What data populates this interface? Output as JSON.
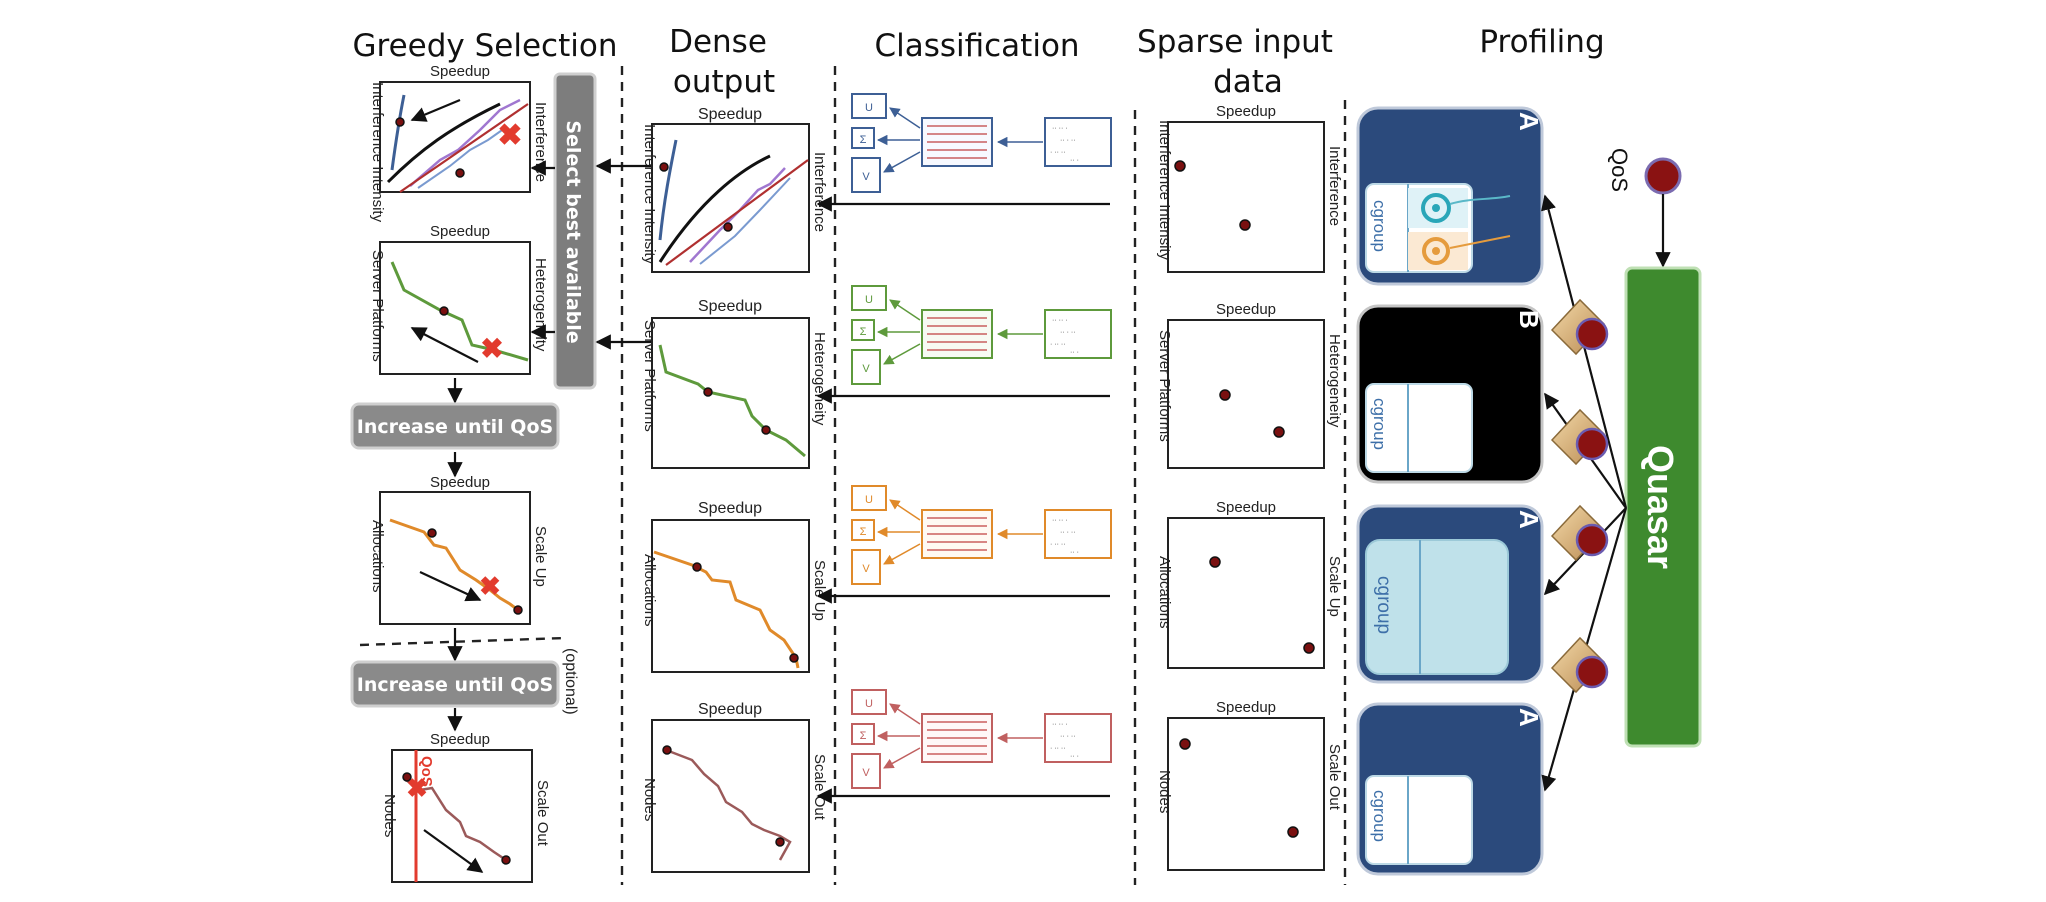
{
  "headers": {
    "greedy": "Greedy Selection",
    "dense_line1": "Dense",
    "dense_line2": "output",
    "classification": "Classification",
    "sparse_line1": "Sparse input",
    "sparse_line2": "data",
    "profiling": "Profiling"
  },
  "axis_labels": {
    "speedup": "Speedup",
    "interference_intensity": "Interference Intensity",
    "interference": "Interference",
    "server_platforms": "Server Platforms",
    "heterogeneity": "Heterogeneity",
    "allocations": "Allocations",
    "scale_up": "Scale Up",
    "nodes": "Nodes",
    "scale_out": "Scale Out"
  },
  "greedy": {
    "select_best": "Select best available",
    "increase_qos_1": "Increase until QoS",
    "increase_qos_2": "Increase until QoS",
    "optional": "(optional)",
    "qos_marker": "QoS"
  },
  "classification": {
    "matrix_labels": [
      "U",
      "Σ",
      "V"
    ]
  },
  "profiling": {
    "cgroup": "cgroup",
    "servers": [
      {
        "letter": "A",
        "color": "#2b4a7c"
      },
      {
        "letter": "B",
        "color": "#000000"
      },
      {
        "letter": "A",
        "color": "#2b4a7c"
      },
      {
        "letter": "A",
        "color": "#2b4a7c"
      }
    ],
    "qos": "QoS",
    "quasar": "Quasar"
  },
  "colors": {
    "interference": "#3d5f95",
    "heterogeneity": "#5e9a3c",
    "scale_up": "#e08a2a",
    "scale_out": "#c06060",
    "quasar_green": "#3e8a2e",
    "red_x": "#e23b2e",
    "dark_dot": "#7a1010"
  }
}
